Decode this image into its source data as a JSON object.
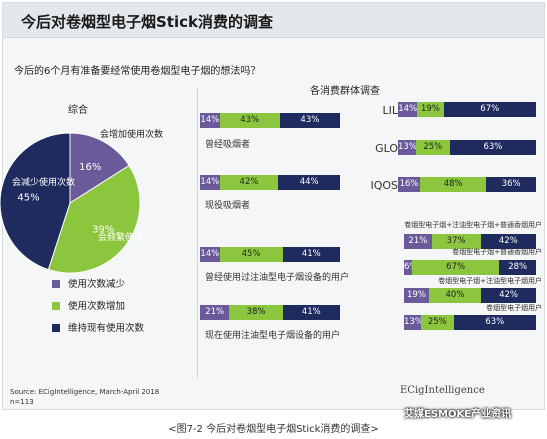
{
  "title": "今后对卷烟型电子烟Stick消费的调查",
  "question": "今后的6个月有准备要经常使用卷烟型电子烟的想法吗？",
  "colors": {
    "reduce": "#6a5a9a",
    "increase": "#8cc63f",
    "maintain": "#1f2a5e"
  },
  "chart_data": [
    {
      "type": "pie",
      "title": "综合",
      "slices": [
        {
          "name": "使用次数减少",
          "value": 16,
          "label": "16%",
          "annotation": "会增加使用次数"
        },
        {
          "name": "使用次数增加",
          "value": 39,
          "label": "39%",
          "annotation": "会频繁使用"
        },
        {
          "name": "维持现有使用次数",
          "value": 45,
          "label": "45%",
          "annotation": "会减少使用次数"
        }
      ],
      "legend": [
        "使用次数减少",
        "使用次数增加",
        "维持现有使用次数"
      ]
    },
    {
      "type": "bar",
      "stacked": true,
      "title": "各消费群体调查",
      "rows": [
        {
          "group": "曾经吸烟者",
          "values": [
            14,
            43,
            43
          ],
          "labels": [
            "14%",
            "43%",
            "43%"
          ]
        },
        {
          "group": "现役吸烟者",
          "values": [
            14,
            42,
            44
          ],
          "labels": [
            "14%",
            "42%",
            "44%"
          ]
        },
        {
          "group": "曾经使用过注油型电子烟设备的用户",
          "values": [
            14,
            45,
            41
          ],
          "labels": [
            "14%",
            "45%",
            "41%"
          ]
        },
        {
          "group": "现在使用注油型电子烟设备的用户",
          "values": [
            21,
            38,
            41
          ],
          "labels": [
            "21%",
            "38%",
            "41%"
          ]
        },
        {
          "group": "LIL",
          "values": [
            14,
            19,
            67
          ],
          "labels": [
            "14%",
            "19%",
            "67%"
          ]
        },
        {
          "group": "GLO",
          "values": [
            13,
            25,
            63
          ],
          "labels": [
            "13%",
            "25%",
            "63%"
          ]
        },
        {
          "group": "IQOS",
          "values": [
            16,
            48,
            36
          ],
          "labels": [
            "16%",
            "48%",
            "36%"
          ]
        },
        {
          "group": "卷烟型电子烟+注油型电子烟+普通香烟用户",
          "values": [
            21,
            37,
            42
          ],
          "labels": [
            "21%",
            "37%",
            "42%"
          ]
        },
        {
          "group": "卷烟型电子烟+普通香烟用户",
          "values": [
            6,
            67,
            28
          ],
          "labels": [
            "6%",
            "67%",
            "28%"
          ]
        },
        {
          "group": "卷烟型电子烟+注油型电子烟用户",
          "values": [
            19,
            40,
            42
          ],
          "labels": [
            "19%",
            "40%",
            "42%"
          ]
        },
        {
          "group": "卷烟型电子烟用户",
          "values": [
            13,
            25,
            63
          ],
          "labels": [
            "13%",
            "25%",
            "63%"
          ]
        }
      ]
    }
  ],
  "source_line1": "Source: ECigIntelligence, March-April 2018",
  "source_line2": "n=113",
  "logo": "ECigIntelligence",
  "caption": "<图7-2 今后对卷烟型电子烟Stick消费的调查>",
  "watermark": "艾媒ESMOKE产业资讯"
}
